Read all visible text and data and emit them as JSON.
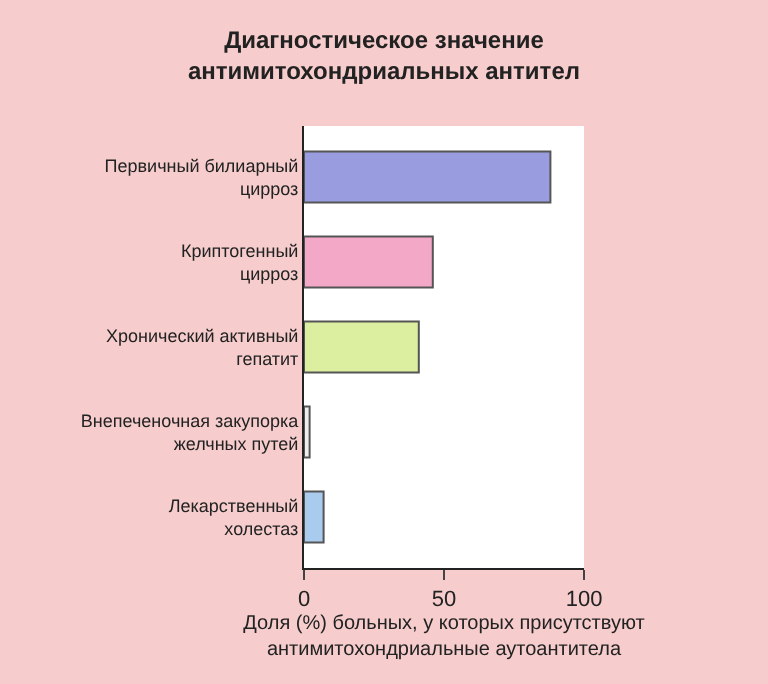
{
  "chart_data": {
    "type": "bar",
    "orientation": "horizontal",
    "title": "Диагностическое значение\nантимитохондриальных антител",
    "xlabel": "Доля (%) больных, у которых присутствуют\nантимитохондриальные аутоантитела",
    "categories": [
      "Первичный билиарный\nцирроз",
      "Криптогенный\nцирроз",
      "Хронический активный\nгепатит",
      "Внепеченочная закупорка\nжелчных путей",
      "Лекарственный\nхолестаз"
    ],
    "values": [
      88,
      46,
      41,
      2,
      7
    ],
    "colors": [
      "#9a9ce0",
      "#f4a8c8",
      "#dcefa0",
      "#eeeeee",
      "#a8cbee"
    ],
    "xlim": [
      0,
      100
    ],
    "xticks": [
      0,
      50,
      100
    ]
  }
}
